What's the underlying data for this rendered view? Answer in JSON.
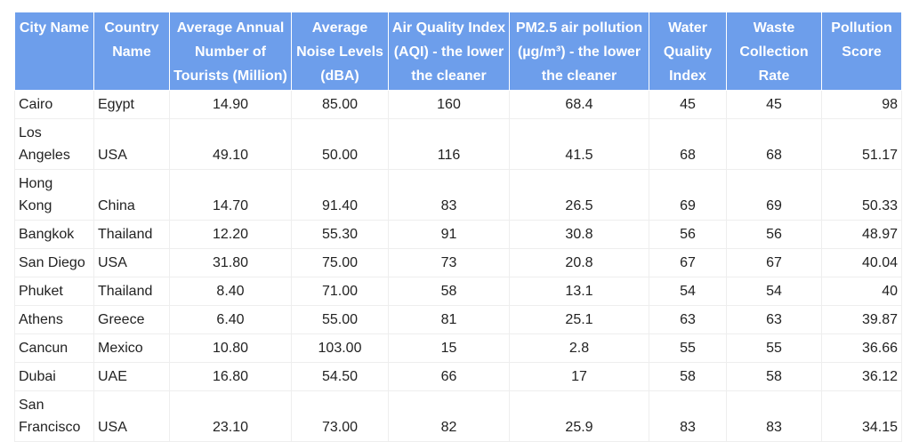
{
  "table": {
    "columns": [
      "City Name",
      "Country Name",
      "Average Annual Number of Tourists (Million)",
      "Average Noise Levels (dBA)",
      "Air Quality Index (AQI) - the lower the cleaner",
      "PM2.5 air pollution (µg/m³) - the lower the cleaner",
      "Water Quality Index",
      "Waste Collection Rate",
      "Pollution Score"
    ],
    "rows": [
      {
        "city": "Cairo",
        "country": "Egypt",
        "tourists": "14.90",
        "noise": "85.00",
        "aqi": "160",
        "pm25": "68.4",
        "water": "45",
        "waste": "45",
        "score": "98"
      },
      {
        "city": "Los Angeles",
        "country": "USA",
        "tourists": "49.10",
        "noise": "50.00",
        "aqi": "116",
        "pm25": "41.5",
        "water": "68",
        "waste": "68",
        "score": "51.17"
      },
      {
        "city": "Hong Kong",
        "country": "China",
        "tourists": "14.70",
        "noise": "91.40",
        "aqi": "83",
        "pm25": "26.5",
        "water": "69",
        "waste": "69",
        "score": "50.33"
      },
      {
        "city": "Bangkok",
        "country": "Thailand",
        "tourists": "12.20",
        "noise": "55.30",
        "aqi": "91",
        "pm25": "30.8",
        "water": "56",
        "waste": "56",
        "score": "48.97"
      },
      {
        "city": "San Diego",
        "country": "USA",
        "tourists": "31.80",
        "noise": "75.00",
        "aqi": "73",
        "pm25": "20.8",
        "water": "67",
        "waste": "67",
        "score": "40.04"
      },
      {
        "city": "Phuket",
        "country": "Thailand",
        "tourists": "8.40",
        "noise": "71.00",
        "aqi": "58",
        "pm25": "13.1",
        "water": "54",
        "waste": "54",
        "score": "40"
      },
      {
        "city": "Athens",
        "country": "Greece",
        "tourists": "6.40",
        "noise": "55.00",
        "aqi": "81",
        "pm25": "25.1",
        "water": "63",
        "waste": "63",
        "score": "39.87"
      },
      {
        "city": "Cancun",
        "country": "Mexico",
        "tourists": "10.80",
        "noise": "103.00",
        "aqi": "15",
        "pm25": "2.8",
        "water": "55",
        "waste": "55",
        "score": "36.66"
      },
      {
        "city": "Dubai",
        "country": "UAE",
        "tourists": "16.80",
        "noise": "54.50",
        "aqi": "66",
        "pm25": "17",
        "water": "58",
        "waste": "58",
        "score": "36.12"
      },
      {
        "city": "San Francisco",
        "country": "USA",
        "tourists": "23.10",
        "noise": "73.00",
        "aqi": "82",
        "pm25": "25.9",
        "water": "83",
        "waste": "83",
        "score": "34.15"
      }
    ]
  },
  "colors": {
    "header_background": "#6d9eeb",
    "header_text": "#ffffff",
    "grid_line": "#eeeeee"
  }
}
